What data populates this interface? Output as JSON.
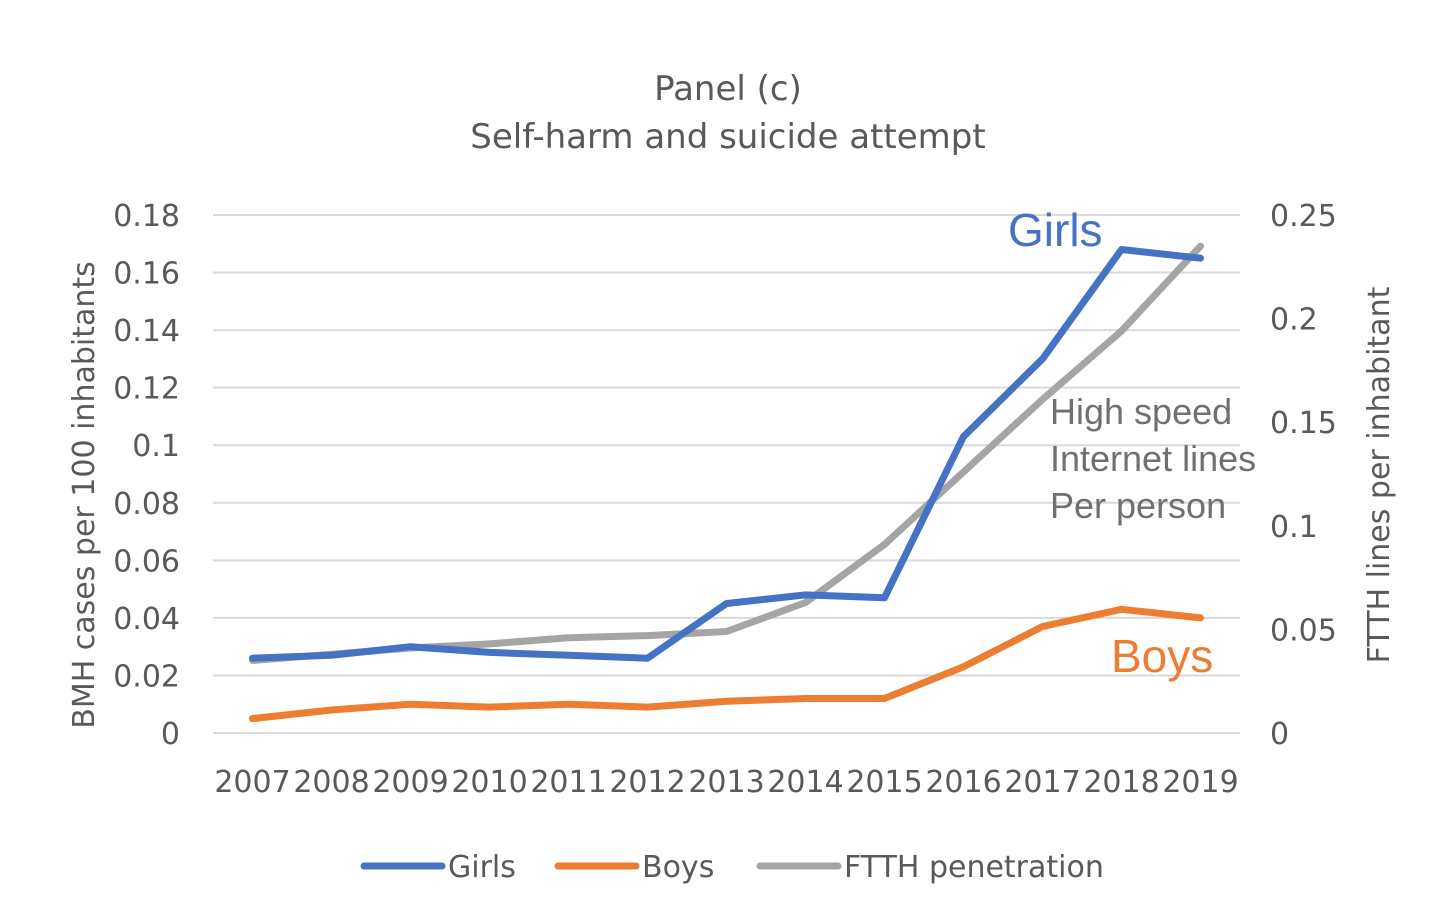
{
  "chart_data": {
    "type": "line",
    "title": "Panel (c)",
    "subtitle": "Self-harm and suicide attempt",
    "categories": [
      "2007",
      "2008",
      "2009",
      "2010",
      "2011",
      "2012",
      "2013",
      "2014",
      "2015",
      "2016",
      "2017",
      "2018",
      "2019"
    ],
    "ylabel": "BMH cases per 100 inhabitants",
    "y2label": "FTTH lines per inhabitant",
    "ylim": [
      0,
      0.18
    ],
    "y2lim": [
      0,
      0.25
    ],
    "yticks": [
      "0",
      "0.02",
      "0.04",
      "0.06",
      "0.08",
      "0.1",
      "0.12",
      "0.14",
      "0.16",
      "0.18"
    ],
    "y2ticks": [
      "0",
      "0.05",
      "0.1",
      "0.15",
      "0.2",
      "0.25"
    ],
    "grid": true,
    "legend_position": "bottom",
    "series": [
      {
        "name": "Girls",
        "axis": "left",
        "color": "#4472C4",
        "values": [
          0.026,
          0.027,
          0.03,
          0.028,
          0.027,
          0.026,
          0.045,
          0.048,
          0.047,
          0.103,
          0.13,
          0.168,
          0.165
        ]
      },
      {
        "name": "Boys",
        "axis": "left",
        "color": "#ED7D31",
        "values": [
          0.005,
          0.008,
          0.01,
          0.009,
          0.01,
          0.009,
          0.011,
          0.012,
          0.012,
          0.023,
          0.037,
          0.043,
          0.04
        ]
      },
      {
        "name": "FTTH penetration",
        "axis": "right",
        "color": "#A5A5A5",
        "values": [
          0.035,
          0.038,
          0.041,
          0.043,
          0.046,
          0.047,
          0.049,
          0.063,
          0.091,
          0.126,
          0.161,
          0.194,
          0.235
        ]
      }
    ],
    "annotations": {
      "girls": "Girls",
      "boys": "Boys",
      "internet": [
        "High speed",
        "Internet lines",
        "Per person"
      ]
    }
  }
}
